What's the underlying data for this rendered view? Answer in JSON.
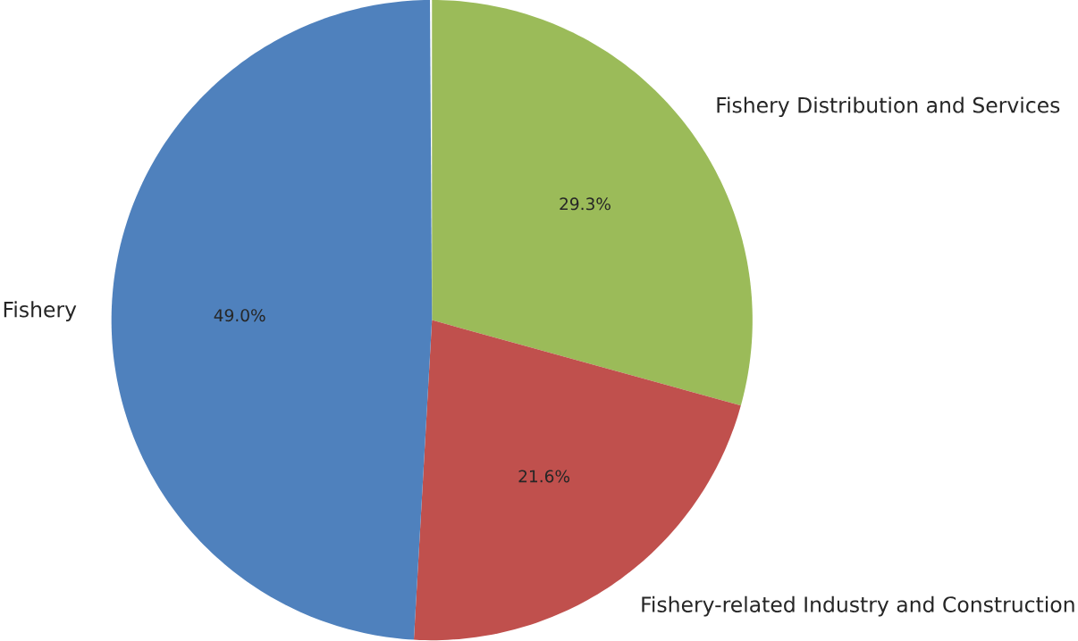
{
  "chart_data": {
    "type": "pie",
    "categories": [
      "Fishery Distribution and Services",
      "Fishery-related Industry and Construction",
      "Fishery"
    ],
    "values": [
      29.3,
      21.6,
      49.0
    ],
    "colors": [
      "#9bbb59",
      "#c0504d",
      "#4f81bd"
    ],
    "value_labels": [
      "29.3%",
      "21.6%",
      "49.0%"
    ]
  }
}
